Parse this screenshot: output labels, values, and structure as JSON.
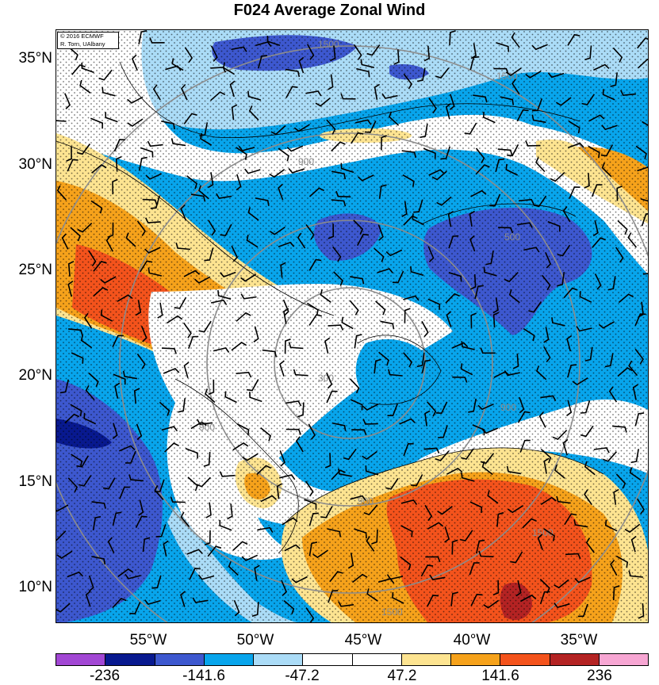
{
  "title": "F024 Average Zonal Wind",
  "credit": {
    "line1": "© 2016 ECMWF",
    "line2": "R. Torn, UAlbany"
  },
  "map": {
    "latitude_labels": [
      "35°N",
      "30°N",
      "25°N",
      "20°N",
      "15°N",
      "10°N"
    ],
    "longitude_labels": [
      "55°W",
      "50°W",
      "45°W",
      "40°W",
      "35°W"
    ],
    "contour_labels": [
      "300",
      "900",
      "900",
      "900",
      "1500",
      "1500",
      "1500",
      "900",
      "1500",
      "500"
    ],
    "colorbar": {
      "ticks": [
        "-236",
        "-141.6",
        "-47.2",
        "47.2",
        "141.6",
        "236"
      ],
      "colors": [
        "#a247d4",
        "#08198f",
        "#3d58cf",
        "#08a5ec",
        "#abdcf7",
        "#ffffff",
        "#ffffff",
        "#fde491",
        "#f6a21b",
        "#f4531c",
        "#b42323",
        "#f7a6d3"
      ]
    },
    "field_colors": {
      "strong_easterly": "#3d58cf",
      "easterly": "#08a5ec",
      "weak_easterly": "#abdcf7",
      "neutral": "#ffffff",
      "weak_westerly": "#fde491",
      "westerly": "#f6a21b",
      "strong_westerly": "#f4531c",
      "very_strong_westerly": "#b42323",
      "extreme_easterly": "#08198f"
    }
  }
}
